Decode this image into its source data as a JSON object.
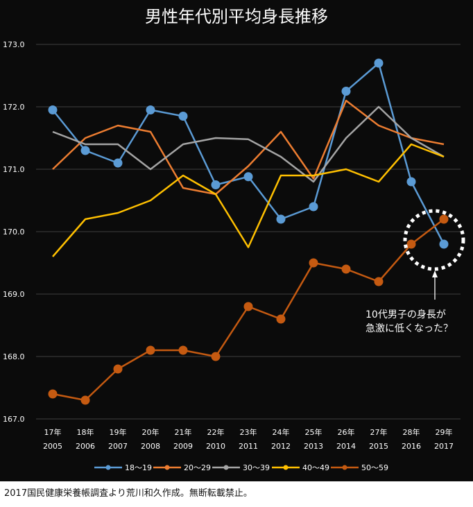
{
  "chart_data": {
    "type": "line",
    "title": "男性年代別平均身長推移",
    "xlabel": "",
    "ylabel": "",
    "ylim": [
      167.0,
      173.0
    ],
    "yticks": [
      "173.0",
      "172.0",
      "171.0",
      "170.0",
      "169.0",
      "168.0",
      "167.0"
    ],
    "grid": true,
    "legend_position": "bottom",
    "categories": [
      {
        "age": "17年",
        "year": "2005"
      },
      {
        "age": "18年",
        "year": "2006"
      },
      {
        "age": "19年",
        "year": "2007"
      },
      {
        "age": "20年",
        "year": "2008"
      },
      {
        "age": "21年",
        "year": "2009"
      },
      {
        "age": "22年",
        "year": "2010"
      },
      {
        "age": "23年",
        "year": "2011"
      },
      {
        "age": "24年",
        "year": "2012"
      },
      {
        "age": "25年",
        "year": "2013"
      },
      {
        "age": "26年",
        "year": "2014"
      },
      {
        "age": "27年",
        "year": "2015"
      },
      {
        "age": "28年",
        "year": "2016"
      },
      {
        "age": "29年",
        "year": "2017"
      }
    ],
    "series": [
      {
        "name": "18〜19",
        "color": "#5b9bd5",
        "markers": true,
        "values": [
          171.95,
          171.3,
          171.1,
          171.95,
          171.85,
          170.75,
          170.88,
          170.2,
          170.4,
          172.25,
          172.7,
          170.8,
          169.8
        ]
      },
      {
        "name": "20〜29",
        "color": "#ed7d31",
        "markers": false,
        "values": [
          171.0,
          171.5,
          171.7,
          171.6,
          170.7,
          170.6,
          171.05,
          171.6,
          170.85,
          172.1,
          171.7,
          171.5,
          171.4
        ]
      },
      {
        "name": "30〜39",
        "color": "#a5a5a5",
        "markers": false,
        "values": [
          171.6,
          171.4,
          171.4,
          171.0,
          171.4,
          171.5,
          171.48,
          171.2,
          170.8,
          171.5,
          172.0,
          171.5,
          171.2
        ]
      },
      {
        "name": "40〜49",
        "color": "#ffc000",
        "markers": false,
        "values": [
          169.6,
          170.2,
          170.3,
          170.5,
          170.9,
          170.6,
          169.75,
          170.9,
          170.9,
          171.0,
          170.8,
          171.4,
          171.2
        ]
      },
      {
        "name": "50〜59",
        "color": "#c55a11",
        "markers": true,
        "values": [
          167.4,
          167.3,
          167.8,
          168.1,
          168.1,
          168.0,
          168.8,
          168.6,
          169.5,
          169.4,
          169.2,
          169.8,
          170.2
        ]
      }
    ],
    "annotation": {
      "lines": [
        "10代男子の身長が",
        "急激に低くなった？"
      ],
      "target_series": "18〜19",
      "target_category": "29年"
    }
  },
  "footer": {
    "text": "2017国民健康栄養帳調査より荒川和久作成。無断転載禁止。"
  },
  "colors": {
    "background": "#0b0b0b",
    "grid": "#3f3f3f",
    "text": "#ffffff"
  }
}
